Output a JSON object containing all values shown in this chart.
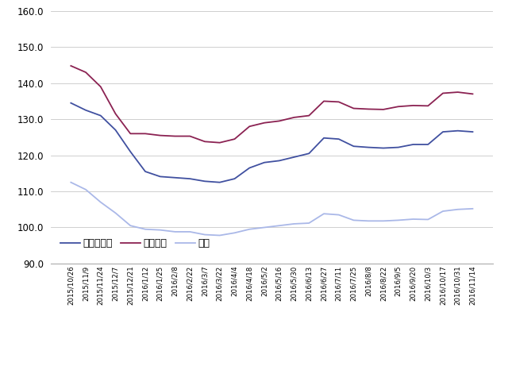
{
  "x_labels": [
    "2015/10/26",
    "2015/11/9",
    "2015/11/24",
    "2015/12/7",
    "2015/12/21",
    "2016/1/12",
    "2016/1/25",
    "2016/2/8",
    "2016/2/22",
    "2016/3/7",
    "2016/3/22",
    "2016/4/4",
    "2016/4/18",
    "2016/5/2",
    "2016/5/16",
    "2016/5/30",
    "2016/6/13",
    "2016/6/27",
    "2016/7/11",
    "2016/7/25",
    "2016/8/8",
    "2016/8/22",
    "2016/9/5",
    "2016/9/20",
    "2016/10/3",
    "2016/10/17",
    "2016/10/31",
    "2016/11/14"
  ],
  "regular": [
    134.5,
    132.5,
    131.0,
    127.0,
    121.0,
    115.5,
    114.1,
    113.8,
    113.5,
    112.8,
    112.5,
    113.5,
    116.5,
    118.0,
    118.5,
    119.5,
    120.5,
    124.8,
    124.5,
    122.5,
    122.2,
    122.0,
    122.2,
    123.0,
    123.0,
    126.5,
    126.8,
    126.5
  ],
  "hioku": [
    144.8,
    143.0,
    139.0,
    131.5,
    126.0,
    126.0,
    125.5,
    125.3,
    125.3,
    123.8,
    123.5,
    124.5,
    128.0,
    129.0,
    129.5,
    130.5,
    131.0,
    135.0,
    134.8,
    133.0,
    132.8,
    132.7,
    133.5,
    133.8,
    133.7,
    137.2,
    137.5,
    137.0
  ],
  "keiyuu": [
    112.5,
    110.5,
    107.0,
    104.0,
    100.5,
    99.5,
    99.3,
    98.8,
    98.8,
    98.0,
    97.8,
    98.5,
    99.5,
    100.0,
    100.5,
    101.0,
    101.2,
    103.8,
    103.5,
    102.0,
    101.8,
    101.8,
    102.0,
    102.3,
    102.2,
    104.5,
    105.0,
    105.2
  ],
  "regular_color": "#4050a0",
  "hioku_color": "#8b2252",
  "keiyuu_color": "#aab8e8",
  "ylim_min": 90.0,
  "ylim_max": 160.0,
  "ytick_interval": 10.0,
  "legend_labels": [
    "レギュラー",
    "ハイオク",
    "軽油"
  ],
  "background_color": "#ffffff",
  "grid_color": "#c8c8c8",
  "border_color": "#aaaaaa"
}
